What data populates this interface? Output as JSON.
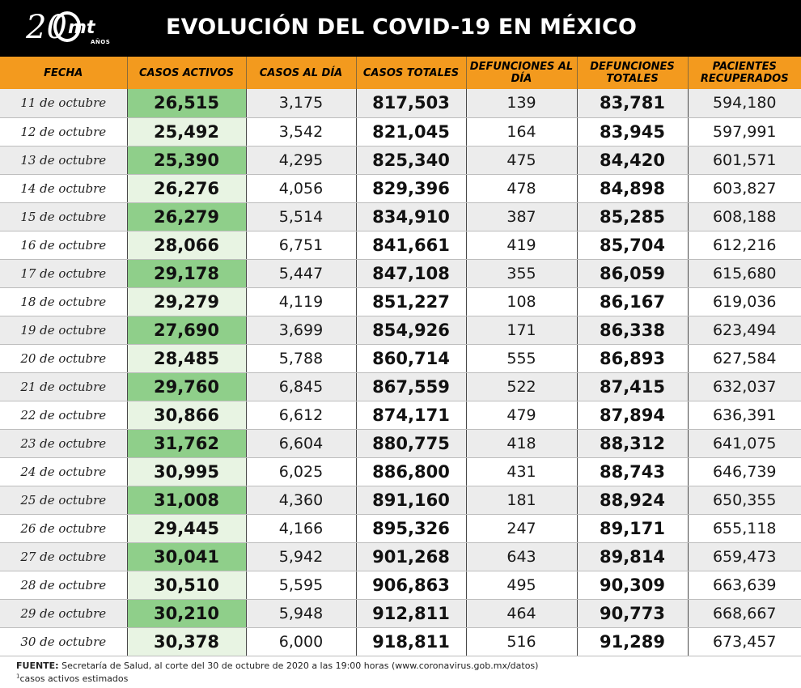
{
  "logo": {
    "number": "20",
    "brand": "mt",
    "years": "AÑOS"
  },
  "title": "EVOLUCIÓN DEL COVID-19 EN MÉXICO",
  "headers": [
    "FECHA",
    "CASOS ACTIVOS",
    "CASOS AL DÍA",
    "CASOS TOTALES",
    "DEFUNCIONES AL DÍA",
    "DEFUNCIONES TOTALES",
    "PACIENTES RECUPERADOS"
  ],
  "rows": [
    [
      "11 de octubre",
      "26,515",
      "3,175",
      "817,503",
      "139",
      "83,781",
      "594,180"
    ],
    [
      "12 de octubre",
      "25,492",
      "3,542",
      "821,045",
      "164",
      "83,945",
      "597,991"
    ],
    [
      "13 de octubre",
      "25,390",
      "4,295",
      "825,340",
      "475",
      "84,420",
      "601,571"
    ],
    [
      "14 de octubre",
      "26,276",
      "4,056",
      "829,396",
      "478",
      "84,898",
      "603,827"
    ],
    [
      "15 de octubre",
      "26,279",
      "5,514",
      "834,910",
      "387",
      "85,285",
      "608,188"
    ],
    [
      "16 de octubre",
      "28,066",
      "6,751",
      "841,661",
      "419",
      "85,704",
      "612,216"
    ],
    [
      "17 de octubre",
      "29,178",
      "5,447",
      "847,108",
      "355",
      "86,059",
      "615,680"
    ],
    [
      "18 de octubre",
      "29,279",
      "4,119",
      "851,227",
      "108",
      "86,167",
      "619,036"
    ],
    [
      "19 de octubre",
      "27,690",
      "3,699",
      "854,926",
      "171",
      "86,338",
      "623,494"
    ],
    [
      "20 de octubre",
      "28,485",
      "5,788",
      "860,714",
      "555",
      "86,893",
      "627,584"
    ],
    [
      "21 de octubre",
      "29,760",
      "6,845",
      "867,559",
      "522",
      "87,415",
      "632,037"
    ],
    [
      "22 de octubre",
      "30,866",
      "6,612",
      "874,171",
      "479",
      "87,894",
      "636,391"
    ],
    [
      "23 de octubre",
      "31,762",
      "6,604",
      "880,775",
      "418",
      "88,312",
      "641,075"
    ],
    [
      "24 de octubre",
      "30,995",
      "6,025",
      "886,800",
      "431",
      "88,743",
      "646,739"
    ],
    [
      "25 de octubre",
      "31,008",
      "4,360",
      "891,160",
      "181",
      "88,924",
      "650,355"
    ],
    [
      "26 de octubre",
      "29,445",
      "4,166",
      "895,326",
      "247",
      "89,171",
      "655,118"
    ],
    [
      "27 de octubre",
      "30,041",
      "5,942",
      "901,268",
      "643",
      "89,814",
      "659,473"
    ],
    [
      "28 de octubre",
      "30,510",
      "5,595",
      "906,863",
      "495",
      "90,309",
      "663,639"
    ],
    [
      "29 de octubre",
      "30,210",
      "5,948",
      "912,811",
      "464",
      "90,773",
      "668,667"
    ],
    [
      "30 de octubre",
      "30,378",
      "6,000",
      "918,811",
      "516",
      "91,289",
      "673,457"
    ]
  ],
  "footer": {
    "source_label": "FUENTE:",
    "source_text": "Secretaría de Salud, al corte del 30 de octubre de 2020 a las 19:00 horas (www.coronavirus.gob.mx/datos)",
    "note_mark": "1",
    "note_text": "casos activos estimados"
  },
  "colors": {
    "header_bg": "#f39a1e",
    "top_bar": "#000000",
    "active_dark": "#8fcf8a",
    "active_light": "#e8f4e3",
    "row_stripe": "#ececec"
  }
}
